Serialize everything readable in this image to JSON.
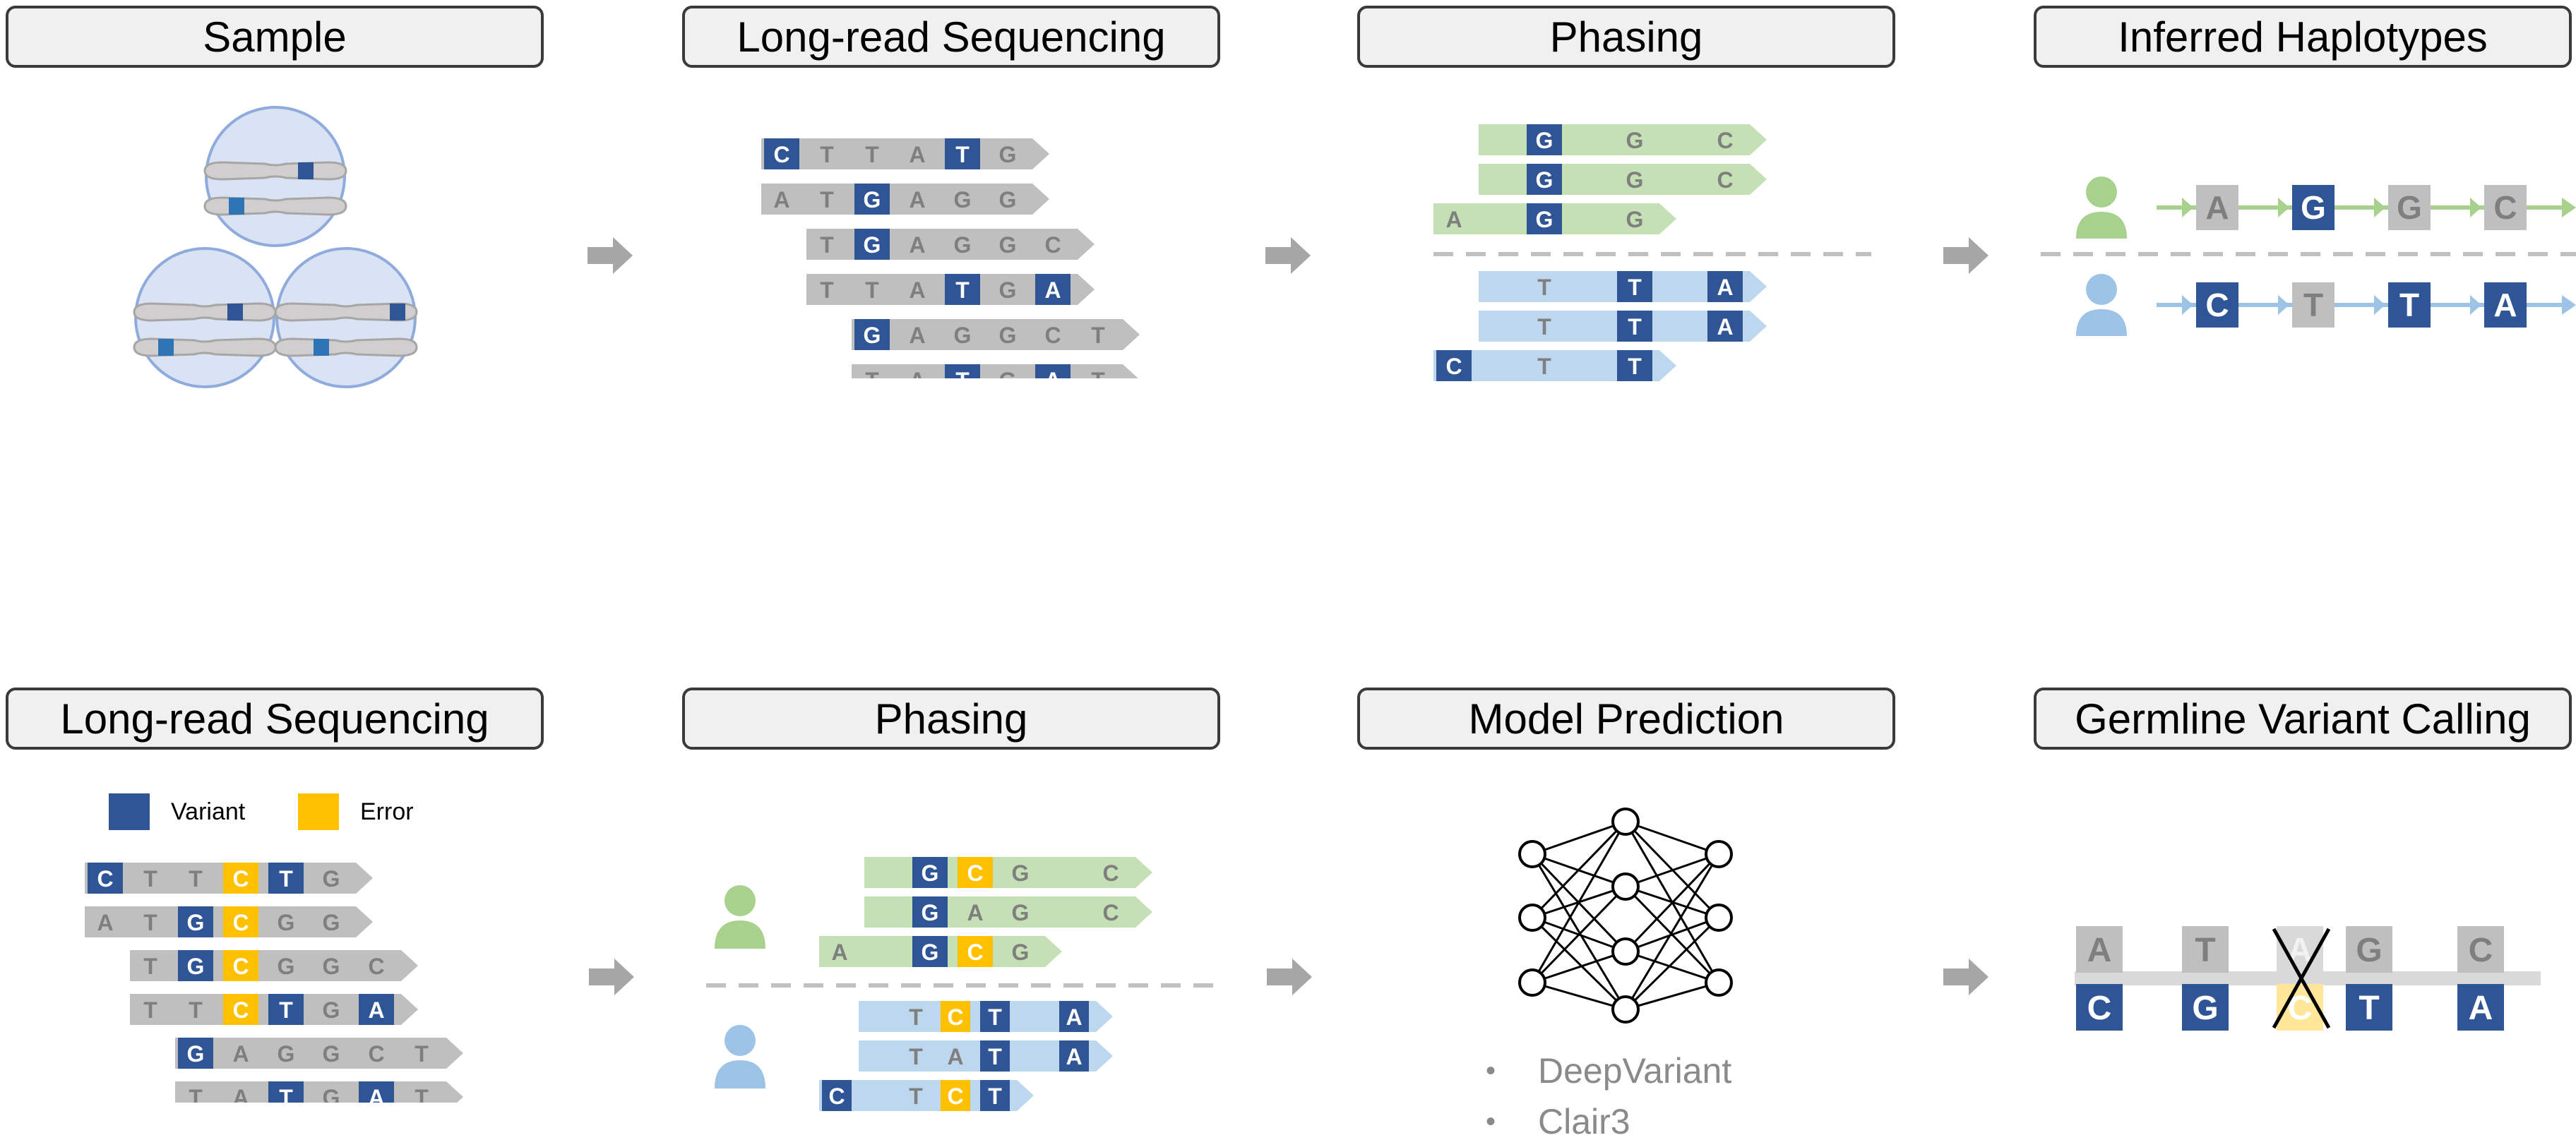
{
  "colors": {
    "variant": "#2f5597",
    "error": "#ffc000",
    "grey_read": "#bfbfbf",
    "grey_text": "#7f7f7f",
    "green_read": "#c5e0b4",
    "blue_read": "#bdd7ee",
    "green_person": "#a9d18e",
    "blue_person": "#9dc3e6",
    "arrow": "#a6a6a6",
    "cell_fill": "#dae3f3",
    "cell_stroke": "#8faadc",
    "chrom": "#d0cece"
  },
  "panels": {
    "top": [
      {
        "title": "Sample"
      },
      {
        "title": "Long-read Sequencing"
      },
      {
        "title": "Phasing"
      },
      {
        "title": "Inferred Haplotypes"
      }
    ],
    "bottom": [
      {
        "title": "Long-read Sequencing"
      },
      {
        "title": "Phasing"
      },
      {
        "title": "Model Prediction"
      },
      {
        "title": "Germline Variant Calling"
      }
    ]
  },
  "legend": {
    "variant_label": "Variant",
    "error_label": "Error"
  },
  "models": [
    "DeepVariant",
    "Clair3"
  ],
  "reads": {
    "top_sequencing": [
      {
        "offset": 0,
        "bases": [
          [
            "C",
            "V"
          ],
          [
            "T",
            ""
          ],
          [
            "T",
            ""
          ],
          [
            "A",
            ""
          ],
          [
            "T",
            "V"
          ],
          [
            "G",
            ""
          ]
        ]
      },
      {
        "offset": 0,
        "bases": [
          [
            "A",
            ""
          ],
          [
            "T",
            ""
          ],
          [
            "G",
            "V"
          ],
          [
            "A",
            ""
          ],
          [
            "G",
            ""
          ],
          [
            "G",
            ""
          ]
        ]
      },
      {
        "offset": 1,
        "bases": [
          [
            "T",
            ""
          ],
          [
            "G",
            "V"
          ],
          [
            "A",
            ""
          ],
          [
            "G",
            ""
          ],
          [
            "G",
            ""
          ],
          [
            "C",
            ""
          ]
        ]
      },
      {
        "offset": 1,
        "bases": [
          [
            "T",
            ""
          ],
          [
            "T",
            ""
          ],
          [
            "A",
            ""
          ],
          [
            "T",
            "V"
          ],
          [
            "G",
            ""
          ],
          [
            "A",
            "V"
          ]
        ]
      },
      {
        "offset": 2,
        "bases": [
          [
            "G",
            "V"
          ],
          [
            "A",
            ""
          ],
          [
            "G",
            ""
          ],
          [
            "G",
            ""
          ],
          [
            "C",
            ""
          ],
          [
            "T",
            ""
          ]
        ]
      },
      {
        "offset": 2,
        "bases": [
          [
            "T",
            ""
          ],
          [
            "A",
            ""
          ],
          [
            "T",
            "V"
          ],
          [
            "G",
            ""
          ],
          [
            "A",
            "V"
          ],
          [
            "T",
            ""
          ]
        ]
      }
    ],
    "top_phasing_green": [
      {
        "offset": 1,
        "bases": [
          [
            "",
            ""
          ],
          [
            "G",
            "V"
          ],
          [
            "",
            ""
          ],
          [
            "G",
            ""
          ],
          [
            "",
            ""
          ],
          [
            "C",
            ""
          ]
        ]
      },
      {
        "offset": 1,
        "bases": [
          [
            "",
            ""
          ],
          [
            "G",
            "V"
          ],
          [
            "",
            ""
          ],
          [
            "G",
            ""
          ],
          [
            "",
            ""
          ],
          [
            "C",
            ""
          ]
        ]
      },
      {
        "offset": 0,
        "bases": [
          [
            "A",
            ""
          ],
          [
            "",
            ""
          ],
          [
            "G",
            "V"
          ],
          [
            "",
            ""
          ],
          [
            "G",
            ""
          ]
        ]
      }
    ],
    "top_phasing_blue": [
      {
        "offset": 1,
        "bases": [
          [
            "",
            ""
          ],
          [
            "T",
            ""
          ],
          [
            "",
            ""
          ],
          [
            "T",
            "V"
          ],
          [
            "",
            ""
          ],
          [
            "A",
            "V"
          ]
        ]
      },
      {
        "offset": 1,
        "bases": [
          [
            "",
            ""
          ],
          [
            "T",
            ""
          ],
          [
            "",
            ""
          ],
          [
            "T",
            "V"
          ],
          [
            "",
            ""
          ],
          [
            "A",
            "V"
          ]
        ]
      },
      {
        "offset": 0,
        "bases": [
          [
            "C",
            "V"
          ],
          [
            "",
            ""
          ],
          [
            "T",
            ""
          ],
          [
            "",
            ""
          ],
          [
            "T",
            "V"
          ]
        ]
      }
    ],
    "haplotype_green": [
      [
        "A",
        ""
      ],
      [
        "G",
        "V"
      ],
      [
        "G",
        ""
      ],
      [
        "C",
        ""
      ]
    ],
    "haplotype_blue": [
      [
        "C",
        "V"
      ],
      [
        "T",
        ""
      ],
      [
        "T",
        "V"
      ],
      [
        "A",
        "V"
      ]
    ],
    "bottom_sequencing": [
      {
        "offset": 0,
        "bases": [
          [
            "C",
            "V"
          ],
          [
            "T",
            ""
          ],
          [
            "T",
            ""
          ],
          [
            "C",
            "E"
          ],
          [
            "T",
            "V"
          ],
          [
            "G",
            ""
          ]
        ]
      },
      {
        "offset": 0,
        "bases": [
          [
            "A",
            ""
          ],
          [
            "T",
            ""
          ],
          [
            "G",
            "V"
          ],
          [
            "C",
            "E"
          ],
          [
            "G",
            ""
          ],
          [
            "G",
            ""
          ]
        ]
      },
      {
        "offset": 1,
        "bases": [
          [
            "T",
            ""
          ],
          [
            "G",
            "V"
          ],
          [
            "C",
            "E"
          ],
          [
            "G",
            ""
          ],
          [
            "G",
            ""
          ],
          [
            "C",
            ""
          ]
        ]
      },
      {
        "offset": 1,
        "bases": [
          [
            "T",
            ""
          ],
          [
            "T",
            ""
          ],
          [
            "C",
            "E"
          ],
          [
            "T",
            "V"
          ],
          [
            "G",
            ""
          ],
          [
            "A",
            "V"
          ]
        ]
      },
      {
        "offset": 2,
        "bases": [
          [
            "G",
            "V"
          ],
          [
            "A",
            ""
          ],
          [
            "G",
            ""
          ],
          [
            "G",
            ""
          ],
          [
            "C",
            ""
          ],
          [
            "T",
            ""
          ]
        ]
      },
      {
        "offset": 2,
        "bases": [
          [
            "T",
            ""
          ],
          [
            "A",
            ""
          ],
          [
            "T",
            "V"
          ],
          [
            "G",
            ""
          ],
          [
            "A",
            "V"
          ],
          [
            "T",
            ""
          ]
        ]
      }
    ],
    "bottom_phasing_green": [
      {
        "offset": 1,
        "bases": [
          [
            "",
            ""
          ],
          [
            "G",
            "V"
          ],
          [
            "C",
            "E"
          ],
          [
            "G",
            ""
          ],
          [
            "",
            ""
          ],
          [
            "C",
            ""
          ]
        ]
      },
      {
        "offset": 1,
        "bases": [
          [
            "",
            ""
          ],
          [
            "G",
            "V"
          ],
          [
            "A",
            ""
          ],
          [
            "G",
            ""
          ],
          [
            "",
            ""
          ],
          [
            "C",
            ""
          ]
        ]
      },
      {
        "offset": 0,
        "bases": [
          [
            "A",
            ""
          ],
          [
            "",
            ""
          ],
          [
            "G",
            "V"
          ],
          [
            "C",
            "E"
          ],
          [
            "G",
            ""
          ]
        ]
      }
    ],
    "bottom_phasing_blue": [
      {
        "offset": 1,
        "bases": [
          [
            "",
            ""
          ],
          [
            "T",
            ""
          ],
          [
            "C",
            "E"
          ],
          [
            "T",
            "V"
          ],
          [
            "",
            ""
          ],
          [
            "A",
            "V"
          ]
        ]
      },
      {
        "offset": 1,
        "bases": [
          [
            "",
            ""
          ],
          [
            "T",
            ""
          ],
          [
            "A",
            ""
          ],
          [
            "T",
            "V"
          ],
          [
            "",
            ""
          ],
          [
            "A",
            "V"
          ]
        ]
      },
      {
        "offset": 0,
        "bases": [
          [
            "C",
            "V"
          ],
          [
            "",
            ""
          ],
          [
            "T",
            ""
          ],
          [
            "C",
            "E"
          ],
          [
            "T",
            "V"
          ]
        ]
      }
    ],
    "calling_top": [
      [
        "A",
        ""
      ],
      [
        "T",
        ""
      ],
      [
        "A",
        "X"
      ],
      [
        "G",
        ""
      ],
      [
        "C",
        ""
      ]
    ],
    "calling_bottom": [
      [
        "C",
        "V"
      ],
      [
        "G",
        "V"
      ],
      [
        "C",
        "X"
      ],
      [
        "T",
        "V"
      ],
      [
        "A",
        "V"
      ]
    ]
  }
}
